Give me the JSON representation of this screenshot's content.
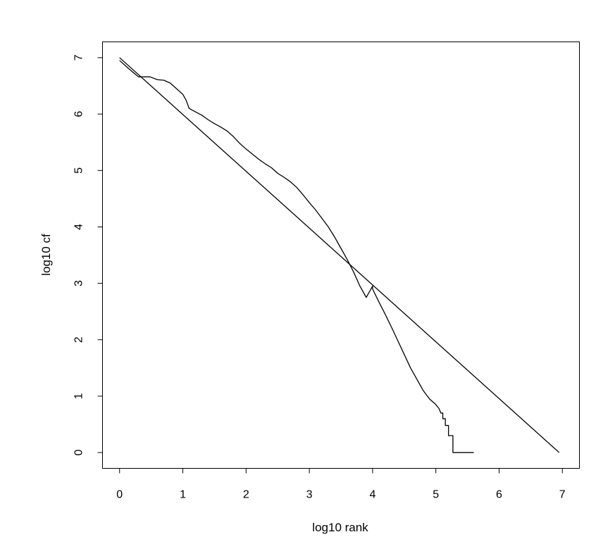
{
  "chart_data": {
    "type": "line",
    "title": "",
    "xlabel": "log10 rank",
    "ylabel": "log10 cf",
    "xlim": [
      -0.27,
      7.27
    ],
    "ylim": [
      -0.28,
      7.28
    ],
    "xticks": [
      "0",
      "1",
      "2",
      "3",
      "4",
      "5",
      "6",
      "7"
    ],
    "yticks": [
      "0",
      "1",
      "2",
      "3",
      "4",
      "5",
      "6",
      "7"
    ],
    "grid": false,
    "legend": "none",
    "series": [
      {
        "kind": "line",
        "points": [
          [
            0.0,
            7.0
          ],
          [
            6.95,
            0.0
          ]
        ]
      },
      {
        "kind": "line",
        "points": [
          [
            0.0,
            6.95
          ],
          [
            0.15,
            6.8
          ],
          [
            0.3,
            6.66
          ],
          [
            0.48,
            6.66
          ],
          [
            0.6,
            6.61
          ],
          [
            0.7,
            6.6
          ],
          [
            0.8,
            6.55
          ],
          [
            0.9,
            6.45
          ],
          [
            1.0,
            6.35
          ],
          [
            1.05,
            6.25
          ],
          [
            1.1,
            6.1
          ],
          [
            1.2,
            6.04
          ],
          [
            1.3,
            5.98
          ],
          [
            1.4,
            5.9
          ],
          [
            1.5,
            5.83
          ],
          [
            1.6,
            5.77
          ],
          [
            1.7,
            5.7
          ],
          [
            1.8,
            5.6
          ],
          [
            1.9,
            5.48
          ],
          [
            2.0,
            5.38
          ],
          [
            2.1,
            5.29
          ],
          [
            2.2,
            5.2
          ],
          [
            2.3,
            5.12
          ],
          [
            2.4,
            5.05
          ],
          [
            2.5,
            4.95
          ],
          [
            2.6,
            4.88
          ],
          [
            2.7,
            4.8
          ],
          [
            2.8,
            4.7
          ],
          [
            2.9,
            4.57
          ],
          [
            3.0,
            4.43
          ],
          [
            3.1,
            4.3
          ],
          [
            3.2,
            4.15
          ],
          [
            3.3,
            4.0
          ],
          [
            3.4,
            3.82
          ],
          [
            3.5,
            3.62
          ],
          [
            3.6,
            3.42
          ],
          [
            3.7,
            3.2
          ],
          [
            3.8,
            2.95
          ],
          [
            3.9,
            2.75
          ],
          [
            4.0,
            2.95
          ],
          [
            4.0,
            2.9
          ],
          [
            4.1,
            2.67
          ],
          [
            4.2,
            2.45
          ],
          [
            4.3,
            2.22
          ],
          [
            4.4,
            1.98
          ],
          [
            4.5,
            1.74
          ],
          [
            4.6,
            1.5
          ],
          [
            4.7,
            1.3
          ],
          [
            4.8,
            1.1
          ],
          [
            4.9,
            0.95
          ],
          [
            5.0,
            0.85
          ],
          [
            5.05,
            0.78
          ],
          [
            5.08,
            0.7
          ],
          [
            5.11,
            0.7
          ],
          [
            5.11,
            0.6
          ],
          [
            5.15,
            0.6
          ],
          [
            5.15,
            0.48
          ],
          [
            5.2,
            0.48
          ],
          [
            5.2,
            0.3
          ],
          [
            5.27,
            0.3
          ],
          [
            5.27,
            0.0
          ],
          [
            5.6,
            0.0
          ]
        ]
      }
    ]
  }
}
